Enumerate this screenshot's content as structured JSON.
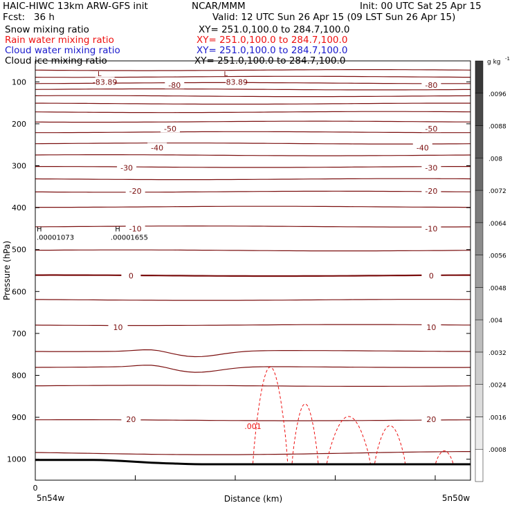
{
  "header": {
    "title_left": "HAIC-HIWC 13km ARW-GFS init",
    "center_label": "NCAR/MMM",
    "init_label": "Init: 00 UTC Sat 25 Apr 15",
    "fcst_label": "Fcst:   36 h",
    "valid_label": "Valid: 12 UTC Sun 26 Apr 15 (09 LST Sun 26 Apr 15)"
  },
  "fields": [
    {
      "label": "Snow mixing ratio",
      "xy": "XY= 251.0,100.0 to 284.7,100.0",
      "color": "#000000"
    },
    {
      "label": "Rain water mixing ratio",
      "xy": "XY= 251.0,100.0 to 284.7,100.0",
      "color": "#ee1111"
    },
    {
      "label": "Cloud water mixing ratio",
      "xy": "XY= 251.0,100.0 to 284.7,100.0",
      "color": "#1a1acc"
    },
    {
      "label": "Cloud ice mixing ratio",
      "xy": "XY= 251.0,100.0 to 284.7,100.0",
      "color": "#000000"
    }
  ],
  "chart_data": {
    "type": "contour",
    "ylabel": "Pressure (hPa)",
    "xlabel": "Distance (km)",
    "y_ticks": [
      100,
      200,
      300,
      400,
      500,
      600,
      700,
      800,
      900,
      1000
    ],
    "ylim": [
      1050,
      50
    ],
    "x_tick_labels": {
      "origin": "0",
      "left_end": "5n54w",
      "right_end": "5n50w"
    },
    "colorbar": {
      "unit_label": "g kg",
      "unit_exponent": "-1",
      "levels": [
        ".0008",
        ".0016",
        ".0024",
        ".0032",
        ".004",
        ".0048",
        ".0056",
        ".0064",
        ".0072",
        ".008",
        ".0088",
        ".0096"
      ],
      "colors": [
        "#ffffff",
        "#ececec",
        "#dcdcdc",
        "#cdcdcd",
        "#bdbdbd",
        "#adadad",
        "#9d9d9d",
        "#8c8c8c",
        "#7c7c7c",
        "#6b6b6b",
        "#5a5a5a",
        "#4a4a4a",
        "#383838"
      ]
    },
    "temperature_labels": [
      {
        "text": "-83.89",
        "x": 0.16,
        "p": 100
      },
      {
        "text": "-83.89",
        "x": 0.46,
        "p": 100
      },
      {
        "text": "-80",
        "x": 0.32,
        "p": 108
      },
      {
        "text": "-80",
        "x": 0.91,
        "p": 108
      },
      {
        "text": "-50",
        "x": 0.31,
        "p": 212
      },
      {
        "text": "-50",
        "x": 0.91,
        "p": 212
      },
      {
        "text": "-40",
        "x": 0.28,
        "p": 257
      },
      {
        "text": "-40",
        "x": 0.89,
        "p": 257
      },
      {
        "text": "-30",
        "x": 0.21,
        "p": 305
      },
      {
        "text": "-30",
        "x": 0.91,
        "p": 305
      },
      {
        "text": "-20",
        "x": 0.23,
        "p": 360
      },
      {
        "text": "-20",
        "x": 0.91,
        "p": 360
      },
      {
        "text": "-10",
        "x": 0.23,
        "p": 450
      },
      {
        "text": "-10",
        "x": 0.91,
        "p": 450
      },
      {
        "text": "0",
        "x": 0.22,
        "p": 562
      },
      {
        "text": "0",
        "x": 0.91,
        "p": 562
      },
      {
        "text": "10",
        "x": 0.19,
        "p": 685
      },
      {
        "text": "10",
        "x": 0.91,
        "p": 685
      },
      {
        "text": "20",
        "x": 0.22,
        "p": 905
      },
      {
        "text": "20",
        "x": 0.91,
        "p": 905
      }
    ],
    "extrema_labels": [
      {
        "text": "L",
        "x": 0.14,
        "p": 80
      },
      {
        "text": "L",
        "x": 0.43,
        "p": 80
      },
      {
        "text": "H",
        "x": 0.0,
        "p": 450
      },
      {
        "text": "H",
        "x": 0.18,
        "p": 450
      },
      {
        "text": ".00001073",
        "x": 0.0,
        "p": 470
      },
      {
        "text": ".00001655",
        "x": 0.17,
        "p": 470
      }
    ],
    "rain_contour_label": {
      "text": ".001",
      "x": 0.5,
      "p": 928
    },
    "isotherm_pressures": [
      72,
      88,
      103,
      118,
      134,
      152,
      172,
      195,
      220,
      247,
      275,
      303,
      332,
      362,
      398,
      445,
      502,
      562,
      620,
      680,
      742,
      780,
      825,
      907,
      985
    ]
  }
}
